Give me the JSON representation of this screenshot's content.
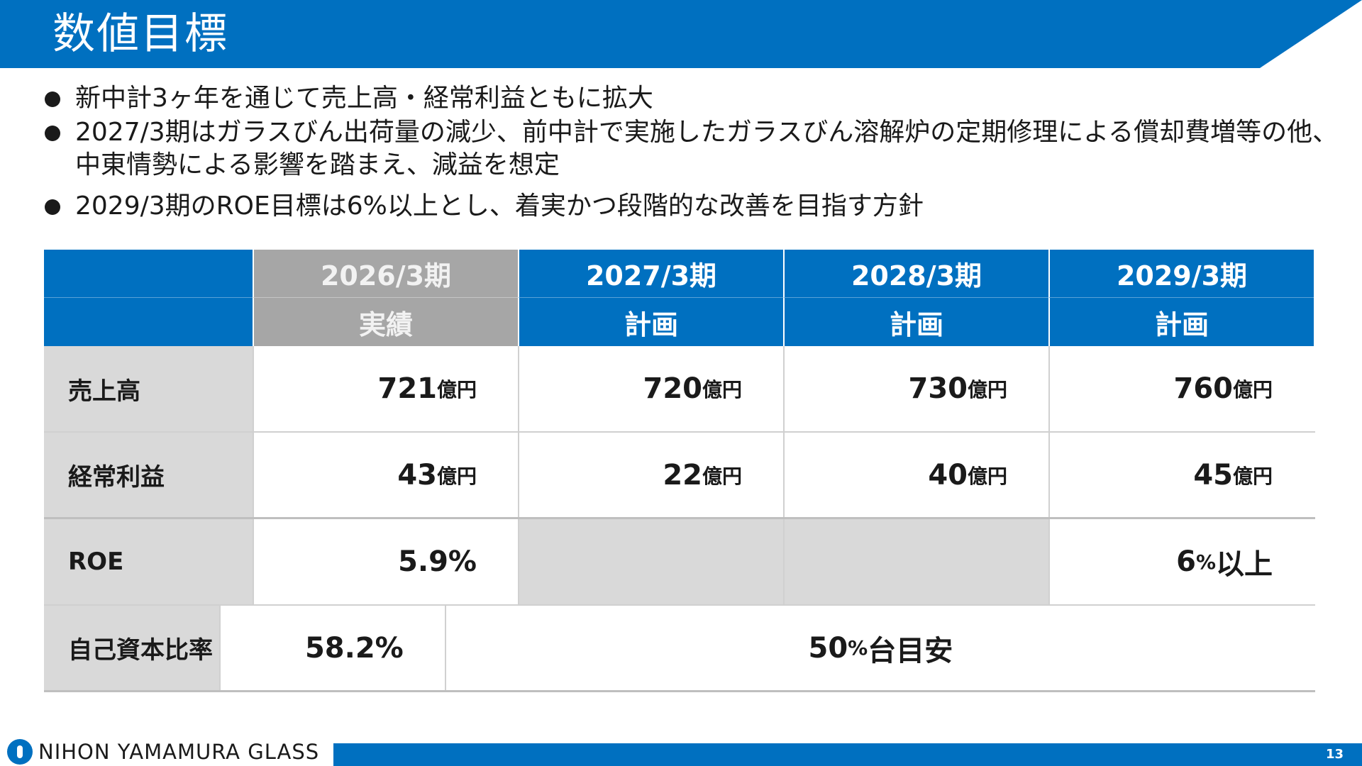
{
  "slide": {
    "title": "数値目標",
    "bullets": [
      "新中計3ヶ年を通じて売上高・経常利益ともに拡大",
      "2027/3期はガラスびん出荷量の減少、前中計で実施したガラスびん溶解炉の定期修理による償却費増等の他、中東情勢による影響を踏まえ、減益を想定",
      "2029/3期のROE目標は6%以上とし、着実かつ段階的な改善を目指す方針"
    ]
  },
  "table": {
    "columns": [
      {
        "period": "2026/3期",
        "type": "実績"
      },
      {
        "period": "2027/3期",
        "type": "計画"
      },
      {
        "period": "2028/3期",
        "type": "計画"
      },
      {
        "period": "2029/3期",
        "type": "計画"
      }
    ],
    "rows": {
      "sales": {
        "label": "売上高",
        "values": [
          "721",
          "720",
          "730",
          "760"
        ],
        "unit": "億円"
      },
      "ordinary_profit": {
        "label": "経常利益",
        "values": [
          "43",
          "22",
          "40",
          "45"
        ],
        "unit": "億円"
      },
      "roe": {
        "label": "ROE",
        "actual": "5.9%",
        "target_num": "6",
        "target_pct": "%",
        "target_suffix": "以上"
      },
      "equity_ratio": {
        "label": "自己資本比率",
        "actual": "58.2%",
        "target_num": "50",
        "target_pct": "%",
        "target_suffix": "台目安"
      }
    }
  },
  "footer": {
    "company": "NIHON YAMAMURA GLASS",
    "page_number": "13"
  },
  "colors": {
    "brand_blue": "#0070c0",
    "actual_gray": "#a6a6a6",
    "label_gray": "#d9d9d9"
  }
}
